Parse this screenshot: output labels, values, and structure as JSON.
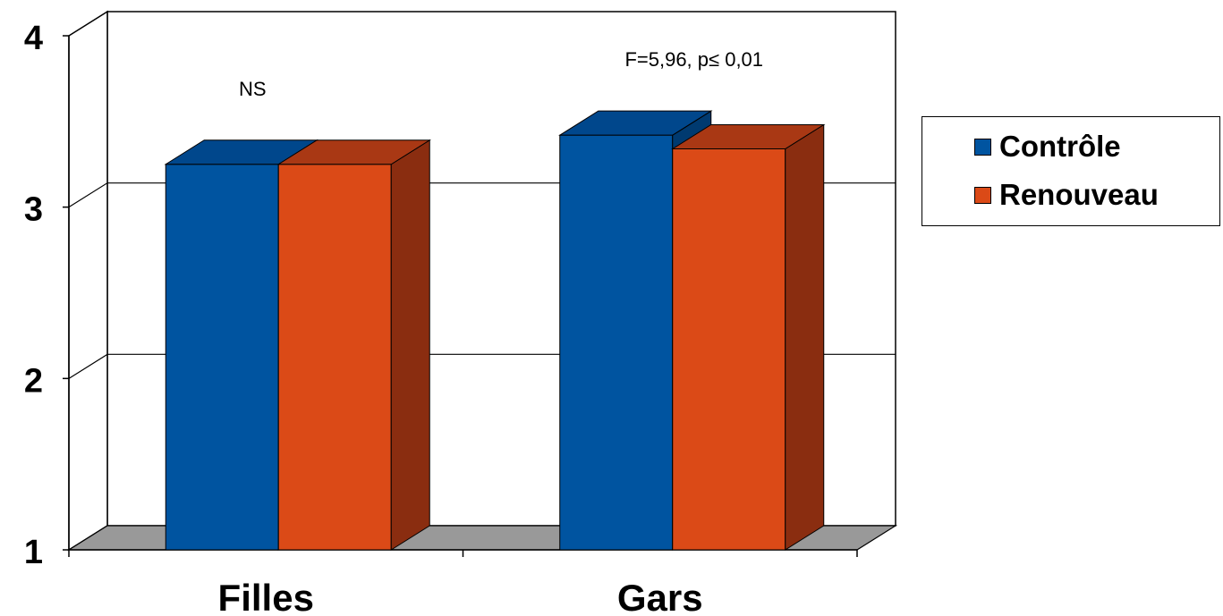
{
  "chart_data": {
    "type": "bar",
    "categories": [
      "Filles",
      "Gars"
    ],
    "series": [
      {
        "name": "Contrôle",
        "values": [
          3.25,
          3.42
        ],
        "color": "#0054A0",
        "topColor": "#00478C",
        "sideColor": "#003A70"
      },
      {
        "name": "Renouveau",
        "values": [
          3.25,
          3.34
        ],
        "color": "#DB4A17",
        "topColor": "#A93814",
        "sideColor": "#8A2D10"
      }
    ],
    "annotations": [
      "NS",
      "F=5,96, p≤ 0,01"
    ],
    "yticks": [
      1,
      2,
      3,
      4
    ],
    "ylim": [
      1,
      4
    ],
    "legend_position": "right",
    "grid": true,
    "three_d": true,
    "floor_color": "#999999"
  }
}
